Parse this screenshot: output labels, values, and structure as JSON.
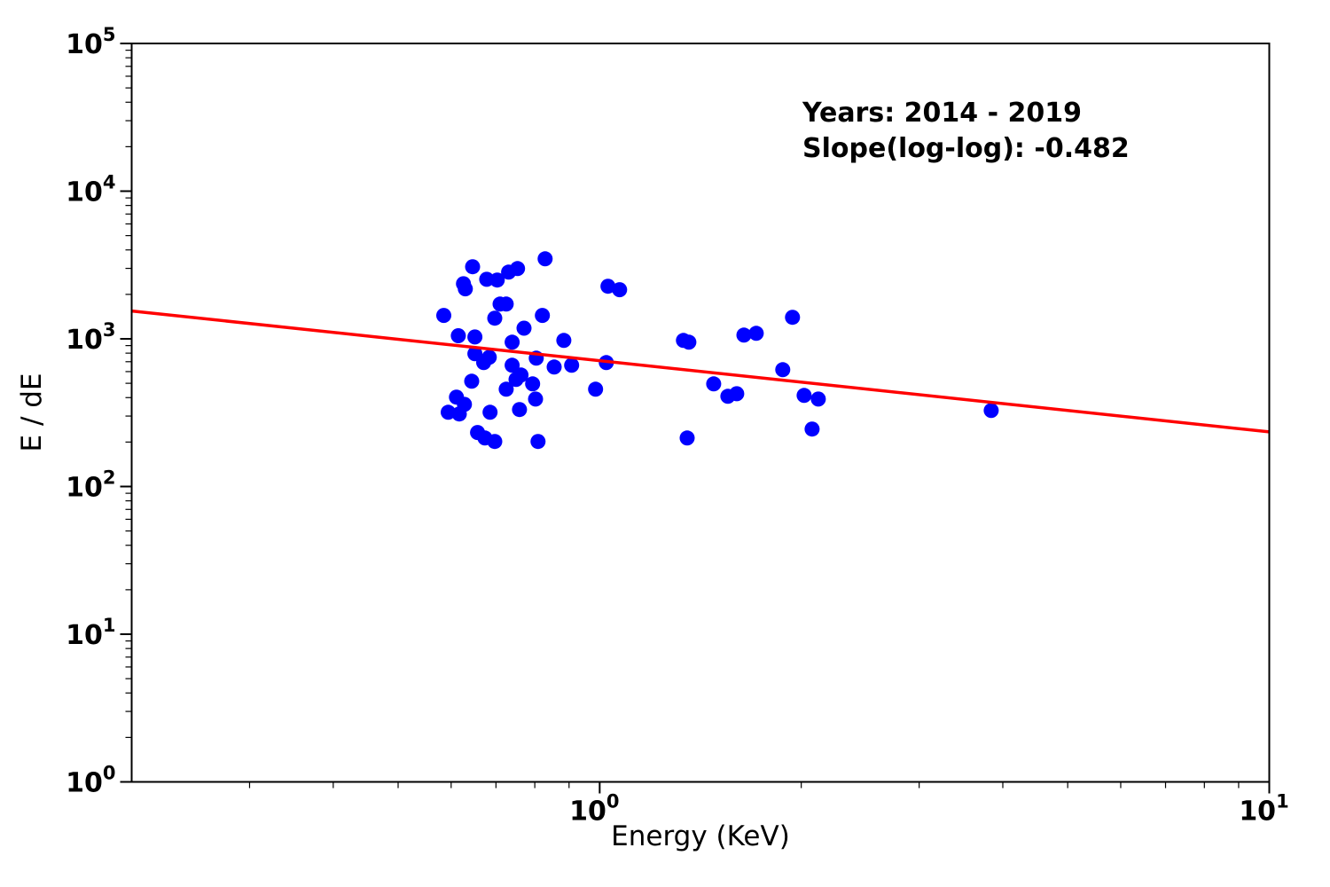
{
  "chart_data": {
    "type": "scatter",
    "title": "",
    "xlabel": "Energy (KeV)",
    "ylabel": "E / dE",
    "xscale": "log",
    "yscale": "log",
    "xlim": [
      0.2,
      10
    ],
    "ylim": [
      1,
      100000
    ],
    "x_major_ticks": [
      1,
      10
    ],
    "y_major_ticks": [
      1,
      10,
      100,
      1000,
      10000,
      100000
    ],
    "grid": false,
    "legend": null,
    "annotation": {
      "line1": "Years: 2014 - 2019",
      "line2": "Slope(log-log): -0.482"
    },
    "series": [
      {
        "name": "energy-resolution-points",
        "kind": "scatter",
        "color": "#0000ff",
        "marker": "circle",
        "marker_radius": 8.5,
        "points": [
          [
            0.829,
            3480
          ],
          [
            0.646,
            3080
          ],
          [
            0.754,
            2990
          ],
          [
            0.731,
            2830
          ],
          [
            0.678,
            2530
          ],
          [
            0.703,
            2500
          ],
          [
            0.626,
            2360
          ],
          [
            0.63,
            2180
          ],
          [
            0.71,
            1720
          ],
          [
            0.725,
            1720
          ],
          [
            0.585,
            1440
          ],
          [
            0.697,
            1380
          ],
          [
            0.821,
            1440
          ],
          [
            0.771,
            1180
          ],
          [
            0.615,
            1050
          ],
          [
            0.651,
            1030
          ],
          [
            0.74,
            949
          ],
          [
            1.029,
            2270
          ],
          [
            1.071,
            2150
          ],
          [
            0.884,
            976
          ],
          [
            0.651,
            793
          ],
          [
            0.684,
            750
          ],
          [
            0.671,
            690
          ],
          [
            0.804,
            740
          ],
          [
            0.74,
            662
          ],
          [
            0.763,
            569
          ],
          [
            0.75,
            531
          ],
          [
            0.644,
            516
          ],
          [
            0.794,
            495
          ],
          [
            0.725,
            456
          ],
          [
            0.611,
            403
          ],
          [
            0.628,
            360
          ],
          [
            0.802,
            391
          ],
          [
            0.594,
            318
          ],
          [
            0.617,
            310
          ],
          [
            0.686,
            318
          ],
          [
            0.759,
            332
          ],
          [
            0.657,
            232
          ],
          [
            0.674,
            213
          ],
          [
            0.697,
            202
          ],
          [
            0.809,
            202
          ],
          [
            0.855,
            644
          ],
          [
            0.908,
            662
          ],
          [
            1.023,
            690
          ],
          [
            0.986,
            456
          ],
          [
            1.334,
            976
          ],
          [
            1.359,
            949
          ],
          [
            1.351,
            213
          ],
          [
            1.48,
            495
          ],
          [
            1.554,
            408
          ],
          [
            1.602,
            425
          ],
          [
            1.642,
            1060
          ],
          [
            1.713,
            1090
          ],
          [
            1.877,
            618
          ],
          [
            1.941,
            1400
          ],
          [
            2.02,
            414
          ],
          [
            2.121,
            391
          ],
          [
            2.076,
            245
          ],
          [
            3.844,
            327
          ]
        ]
      },
      {
        "name": "power-law-fit",
        "kind": "line",
        "color": "#ff0000",
        "line_width": 3.5,
        "slope_loglog": -0.482,
        "value_at_1keV": 711,
        "x_range": [
          0.2,
          10
        ]
      }
    ]
  },
  "colors": {
    "marker": "#0000ff",
    "fit_line": "#ff0000",
    "axis": "#000000",
    "text": "#000000",
    "background": "#ffffff"
  }
}
